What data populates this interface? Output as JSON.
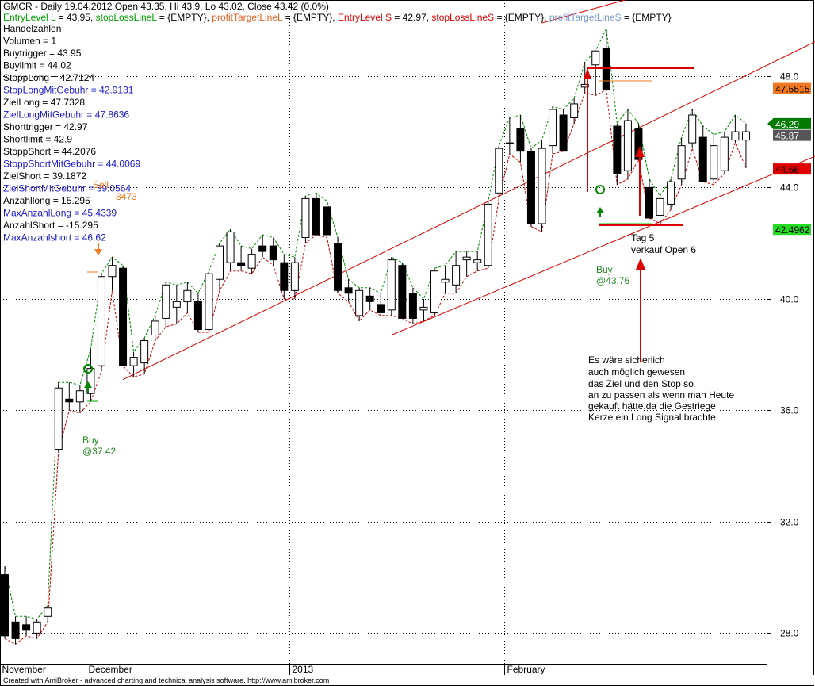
{
  "header": {
    "title_line": "GMCR - Daily 19.04.2012 Open 43.35, Hi 43.9, Lo 43.02, Close 43.42 (0.0%)",
    "legend": [
      {
        "text": "EntryLevel L",
        "color": "#00a000"
      },
      {
        "text": " = 43.95, ",
        "color": "#000000"
      },
      {
        "text": "stopLossLineL",
        "color": "#00a000"
      },
      {
        "text": " = {EMPTY}, ",
        "color": "#000000"
      },
      {
        "text": "profitTargetLineL",
        "color": "#e06020"
      },
      {
        "text": " = {EMPTY}, ",
        "color": "#000000"
      },
      {
        "text": "EntryLevel S",
        "color": "#e00000"
      },
      {
        "text": " = 42.97, ",
        "color": "#000000"
      },
      {
        "text": "stopLossLineS",
        "color": "#e00000"
      },
      {
        "text": " = {EMPTY}, ",
        "color": "#000000"
      },
      {
        "text": "profitTargetLineS",
        "color": "#7799cc"
      },
      {
        "text": " = {EMPTY}",
        "color": "#000000"
      }
    ]
  },
  "stats": [
    {
      "text": "Handelzahlen",
      "color": "#000000"
    },
    {
      "text": "Volumen = 1",
      "color": "#000000"
    },
    {
      "text": "Buytrigger = 43.95",
      "color": "#000000"
    },
    {
      "text": "Buylimit = 44.02",
      "color": "#000000"
    },
    {
      "text": "StoppLong = 42.7124",
      "color": "#000000"
    },
    {
      "text": "StopLongMitGebuhr = 42.9131",
      "color": "#1a1acc"
    },
    {
      "text": "ZielLong = 47.7328",
      "color": "#000000"
    },
    {
      "text": "ZielLongMitGebuhr = 47.8636",
      "color": "#1a1acc"
    },
    {
      "text": "Shorttrigger = 42.97",
      "color": "#000000"
    },
    {
      "text": "Shortlimit = 42.9",
      "color": "#000000"
    },
    {
      "text": "StoppShort = 44.2076",
      "color": "#000000"
    },
    {
      "text": "StoppShortMitGebuhr = 44.0069",
      "color": "#1a1acc"
    },
    {
      "text": "ZielShort = 39.1872",
      "color": "#000000"
    },
    {
      "text": "ZielShortMitGebuhr = 39.0564",
      "color": "#1a1acc"
    },
    {
      "text": "Anzahllong = 15.295",
      "color": "#000000"
    },
    {
      "text": "MaxAnzahlLong = 45.4339",
      "color": "#1a1acc"
    },
    {
      "text": "AnzahlShort = -15.295",
      "color": "#000000"
    },
    {
      "text": "MaxAnzahlshort = 46.62",
      "color": "#1a1acc"
    }
  ],
  "overlay_texts": {
    "sell_label": "Sell",
    "maxlong_tail": "8473"
  },
  "price_badges": [
    {
      "label": "47.5515",
      "value": 47.5515,
      "bg": "#f07820",
      "fg": "#000000"
    },
    {
      "label": "46.29",
      "value": 46.29,
      "bg": "#007a00",
      "fg": "#ffffff"
    },
    {
      "label": "45.87",
      "value": 45.87,
      "bg": "#555555",
      "fg": "#ffffff"
    },
    {
      "label": "44.66",
      "value": 44.66,
      "bg": "#e00000",
      "fg": "#000000"
    },
    {
      "label": "42.4962",
      "value": 42.4962,
      "bg": "#22dd22",
      "fg": "#000000"
    }
  ],
  "annotations": {
    "buy1_line1": "Buy",
    "buy1_line2": "@37.42",
    "buy2_line1": "Buy",
    "buy2_line2": "@43.76",
    "tag_line1": "Tag 5",
    "tag_line2": "verkauf Open 6",
    "comment_lines": [
      "Es wäre sicherlich",
      "auch möglich gewesen",
      "das Ziel und den Stop so",
      "an zu passen als wenn man Heute",
      "gekauft hätte.da die Gestriege",
      "Kerze ein Long Signal brachte."
    ]
  },
  "footer": "Created with AmiBroker - advanced charting and technical analysis software. http://www.amibroker.com",
  "colors": {
    "grid": "#000000",
    "candle_up": "#ffffff",
    "candle_down": "#000000",
    "channel_red": "#dd0000",
    "hi_line_green": "#008800",
    "lo_line_red": "#cc0000",
    "buy_green": "#008800",
    "sell_orange": "#f07820"
  },
  "chart_data": {
    "type": "candlestick",
    "symbol": "GMCR",
    "interval": "Daily",
    "ylim": [
      26.9,
      50.5
    ],
    "y_ticks": [
      28.0,
      32.0,
      36.0,
      40.0,
      44.0,
      48.0
    ],
    "x_labels": [
      {
        "label": "November",
        "index": 0
      },
      {
        "label": "December",
        "index": 8
      },
      {
        "label": "2013",
        "index": 27
      },
      {
        "label": "February",
        "index": 47
      }
    ],
    "candles": [
      {
        "o": 30.1,
        "h": 30.4,
        "l": 27.8,
        "c": 27.9
      },
      {
        "o": 28.4,
        "h": 28.6,
        "l": 27.6,
        "c": 27.8
      },
      {
        "o": 28.3,
        "h": 28.6,
        "l": 27.9,
        "c": 28.1
      },
      {
        "o": 28.0,
        "h": 28.5,
        "l": 27.8,
        "c": 28.4
      },
      {
        "o": 28.6,
        "h": 29.0,
        "l": 28.4,
        "c": 28.9
      },
      {
        "o": 34.6,
        "h": 37.0,
        "l": 34.5,
        "c": 36.8
      },
      {
        "o": 36.4,
        "h": 37.0,
        "l": 36.0,
        "c": 36.3
      },
      {
        "o": 36.3,
        "h": 36.9,
        "l": 35.9,
        "c": 36.7
      },
      {
        "o": 36.6,
        "h": 38.2,
        "l": 36.3,
        "c": 37.5
      },
      {
        "o": 37.6,
        "h": 40.9,
        "l": 37.4,
        "c": 40.8
      },
      {
        "o": 40.8,
        "h": 41.5,
        "l": 40.3,
        "c": 41.2
      },
      {
        "o": 41.1,
        "h": 41.2,
        "l": 37.6,
        "c": 37.6
      },
      {
        "o": 37.6,
        "h": 38.1,
        "l": 37.2,
        "c": 37.9
      },
      {
        "o": 37.7,
        "h": 38.6,
        "l": 37.3,
        "c": 38.5
      },
      {
        "o": 38.7,
        "h": 39.4,
        "l": 38.5,
        "c": 39.2
      },
      {
        "o": 39.3,
        "h": 40.6,
        "l": 39.0,
        "c": 40.5
      },
      {
        "o": 39.7,
        "h": 40.5,
        "l": 39.1,
        "c": 39.9
      },
      {
        "o": 39.9,
        "h": 40.6,
        "l": 39.5,
        "c": 40.3
      },
      {
        "o": 39.9,
        "h": 40.2,
        "l": 38.8,
        "c": 38.9
      },
      {
        "o": 38.9,
        "h": 41.0,
        "l": 38.8,
        "c": 40.9
      },
      {
        "o": 40.7,
        "h": 42.0,
        "l": 40.3,
        "c": 41.9
      },
      {
        "o": 41.3,
        "h": 42.5,
        "l": 41.0,
        "c": 42.4
      },
      {
        "o": 41.3,
        "h": 41.9,
        "l": 41.0,
        "c": 41.2
      },
      {
        "o": 41.1,
        "h": 41.8,
        "l": 40.9,
        "c": 41.6
      },
      {
        "o": 41.9,
        "h": 42.3,
        "l": 41.5,
        "c": 41.7
      },
      {
        "o": 41.9,
        "h": 42.2,
        "l": 41.2,
        "c": 41.4
      },
      {
        "o": 41.3,
        "h": 41.6,
        "l": 40.0,
        "c": 40.3
      },
      {
        "o": 40.3,
        "h": 41.5,
        "l": 40.0,
        "c": 41.3
      },
      {
        "o": 42.2,
        "h": 43.7,
        "l": 42.0,
        "c": 43.6
      },
      {
        "o": 43.6,
        "h": 43.8,
        "l": 42.3,
        "c": 42.3
      },
      {
        "o": 43.3,
        "h": 43.5,
        "l": 42.2,
        "c": 42.3
      },
      {
        "o": 42.0,
        "h": 42.2,
        "l": 40.2,
        "c": 40.3
      },
      {
        "o": 40.4,
        "h": 40.7,
        "l": 39.9,
        "c": 40.2
      },
      {
        "o": 39.4,
        "h": 40.4,
        "l": 39.2,
        "c": 40.3
      },
      {
        "o": 40.1,
        "h": 40.4,
        "l": 39.6,
        "c": 39.9
      },
      {
        "o": 39.8,
        "h": 40.2,
        "l": 39.4,
        "c": 39.5
      },
      {
        "o": 39.6,
        "h": 41.5,
        "l": 39.4,
        "c": 41.4
      },
      {
        "o": 41.2,
        "h": 41.3,
        "l": 39.3,
        "c": 39.3
      },
      {
        "o": 40.2,
        "h": 40.4,
        "l": 39.1,
        "c": 39.3
      },
      {
        "o": 39.6,
        "h": 40.0,
        "l": 39.2,
        "c": 39.7
      },
      {
        "o": 39.5,
        "h": 41.1,
        "l": 39.4,
        "c": 41.0
      },
      {
        "o": 40.6,
        "h": 41.2,
        "l": 40.2,
        "c": 40.7
      },
      {
        "o": 40.5,
        "h": 41.7,
        "l": 40.2,
        "c": 41.2
      },
      {
        "o": 41.4,
        "h": 41.7,
        "l": 40.8,
        "c": 41.5
      },
      {
        "o": 41.3,
        "h": 41.7,
        "l": 41.0,
        "c": 41.4
      },
      {
        "o": 41.2,
        "h": 43.5,
        "l": 41.1,
        "c": 43.4
      },
      {
        "o": 43.8,
        "h": 45.5,
        "l": 43.6,
        "c": 45.4
      },
      {
        "o": 45.6,
        "h": 46.5,
        "l": 45.2,
        "c": 45.6
      },
      {
        "o": 46.1,
        "h": 46.6,
        "l": 44.9,
        "c": 45.3
      },
      {
        "o": 45.3,
        "h": 45.4,
        "l": 42.6,
        "c": 42.7
      },
      {
        "o": 42.7,
        "h": 45.7,
        "l": 42.4,
        "c": 45.4
      },
      {
        "o": 45.5,
        "h": 46.9,
        "l": 45.2,
        "c": 46.8
      },
      {
        "o": 46.6,
        "h": 46.8,
        "l": 45.3,
        "c": 45.3
      },
      {
        "o": 46.5,
        "h": 47.2,
        "l": 46.3,
        "c": 47.0
      },
      {
        "o": 47.6,
        "h": 48.5,
        "l": 47.4,
        "c": 47.7
      },
      {
        "o": 48.4,
        "h": 48.9,
        "l": 47.3,
        "c": 48.9
      },
      {
        "o": 49.0,
        "h": 49.7,
        "l": 47.5,
        "c": 47.5
      },
      {
        "o": 46.2,
        "h": 46.3,
        "l": 44.1,
        "c": 44.5
      },
      {
        "o": 44.6,
        "h": 46.8,
        "l": 44.3,
        "c": 46.4
      },
      {
        "o": 46.1,
        "h": 46.3,
        "l": 45.0,
        "c": 45.0
      },
      {
        "o": 44.0,
        "h": 44.3,
        "l": 42.9,
        "c": 42.9
      },
      {
        "o": 43.0,
        "h": 43.7,
        "l": 42.7,
        "c": 43.6
      },
      {
        "o": 43.4,
        "h": 44.3,
        "l": 43.2,
        "c": 44.2
      },
      {
        "o": 44.3,
        "h": 45.8,
        "l": 44.1,
        "c": 45.5
      },
      {
        "o": 45.6,
        "h": 46.8,
        "l": 45.4,
        "c": 46.6
      },
      {
        "o": 45.8,
        "h": 46.2,
        "l": 44.2,
        "c": 44.2
      },
      {
        "o": 44.3,
        "h": 45.9,
        "l": 44.1,
        "c": 45.5
      },
      {
        "o": 44.6,
        "h": 46.0,
        "l": 44.5,
        "c": 45.8
      },
      {
        "o": 45.7,
        "h": 46.6,
        "l": 45.6,
        "c": 46.0
      },
      {
        "o": 45.7,
        "h": 46.3,
        "l": 44.7,
        "c": 46.0
      }
    ],
    "channel_lines": [
      {
        "from": {
          "index": 11,
          "y": 37.1
        },
        "to": {
          "index": 79,
          "y": 49.9
        }
      },
      {
        "from": {
          "index": 36,
          "y": 38.7
        },
        "to": {
          "index": 79,
          "y": 45.7
        }
      },
      {
        "from": {
          "index": 50,
          "y": 49.9
        },
        "to": {
          "index": 79,
          "y": 53.0
        }
      }
    ],
    "signals": [
      {
        "type": "buy",
        "index": 7,
        "price": 37.42
      },
      {
        "type": "buy",
        "index": 54,
        "price": 43.76
      },
      {
        "type": "sell",
        "index": 8
      }
    ]
  }
}
